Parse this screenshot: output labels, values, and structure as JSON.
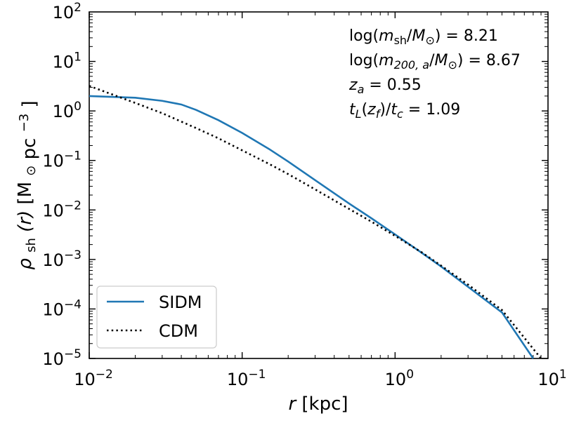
{
  "chart_data": {
    "type": "line",
    "xscale": "log",
    "yscale": "log",
    "xlim": [
      0.01,
      10
    ],
    "ylim": [
      1e-05,
      100
    ],
    "x_ticks": [
      {
        "value": 0.01,
        "base": "10",
        "exp": "−2"
      },
      {
        "value": 0.1,
        "base": "10",
        "exp": "−1"
      },
      {
        "value": 1,
        "base": "10",
        "exp": "0"
      },
      {
        "value": 10,
        "base": "10",
        "exp": "1"
      }
    ],
    "y_ticks": [
      {
        "value": 1e-05,
        "base": "10",
        "exp": "−5"
      },
      {
        "value": 0.0001,
        "base": "10",
        "exp": "−4"
      },
      {
        "value": 0.001,
        "base": "10",
        "exp": "−3"
      },
      {
        "value": 0.01,
        "base": "10",
        "exp": "−2"
      },
      {
        "value": 0.1,
        "base": "10",
        "exp": "−1"
      },
      {
        "value": 1,
        "base": "10",
        "exp": "0"
      },
      {
        "value": 10,
        "base": "10",
        "exp": "1"
      },
      {
        "value": 100,
        "base": "10",
        "exp": "2"
      }
    ],
    "xlabel": {
      "var": "r",
      "unit": "[kpc]"
    },
    "ylabel": {
      "rho": "ρ",
      "sub": "sh",
      "arg": "(r)",
      "unit_open": "[M",
      "sun": "⊙",
      "pc": "pc",
      "exp": "−3",
      "close": "]"
    },
    "series": [
      {
        "name": "SIDM",
        "color": "#1f77b4",
        "style": "solid",
        "x": [
          0.01,
          0.02,
          0.03,
          0.04,
          0.05,
          0.07,
          0.1,
          0.15,
          0.2,
          0.3,
          0.5,
          0.7,
          1,
          1.5,
          2,
          3,
          5,
          8
        ],
        "y": [
          2.0,
          1.85,
          1.6,
          1.35,
          1.05,
          0.65,
          0.36,
          0.17,
          0.095,
          0.04,
          0.0135,
          0.0068,
          0.0032,
          0.00135,
          0.00072,
          0.00028,
          8.5e-05,
          1e-05
        ]
      },
      {
        "name": "CDM",
        "color": "#000000",
        "style": "dotted",
        "x": [
          0.01,
          0.02,
          0.03,
          0.05,
          0.07,
          0.1,
          0.15,
          0.2,
          0.3,
          0.5,
          0.7,
          1,
          1.5,
          2,
          3,
          5,
          9
        ],
        "y": [
          3.2,
          1.45,
          0.9,
          0.45,
          0.28,
          0.16,
          0.085,
          0.053,
          0.026,
          0.0105,
          0.0058,
          0.003,
          0.00138,
          0.00075,
          0.00031,
          9.5e-05,
          1e-05
        ]
      }
    ],
    "legend": {
      "placement": "lower-left",
      "entries": [
        "SIDM",
        "CDM"
      ]
    },
    "annotations": {
      "line1": {
        "pre": "log(",
        "m": "m",
        "msub": "sh",
        "slash": "/",
        "M": "M",
        "Msub": "⊙",
        "post": ") = 8.21"
      },
      "line2": {
        "pre": "log(",
        "m": "m",
        "msub": "200, a",
        "slash": "/",
        "M": "M",
        "Msub": "⊙",
        "post": ") = 8.67"
      },
      "line3": {
        "z": "z",
        "zsub": "a",
        "post": " = 0.55"
      },
      "line4": {
        "t": "t",
        "tsub": "L",
        "open": "(",
        "z": "z",
        "zsub": "f",
        "close": ")/",
        "t2": "t",
        "t2sub": "c",
        "post": " = 1.09"
      }
    }
  }
}
